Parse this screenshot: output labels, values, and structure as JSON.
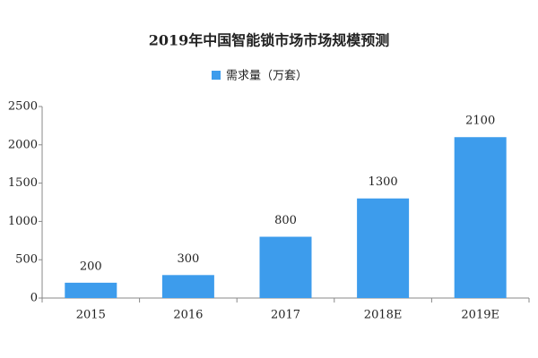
{
  "chart_data": {
    "type": "bar",
    "title": "2019年中国智能锁市场市场规模预测",
    "categories": [
      "2015",
      "2016",
      "2017",
      "2018E",
      "2019E"
    ],
    "series": [
      {
        "name": "需求量（万套）",
        "color": "#3d9cec",
        "values": [
          200,
          300,
          800,
          1300,
          2100
        ]
      }
    ],
    "ylim": [
      0,
      2500
    ],
    "yticks": [
      0,
      500,
      1000,
      1500,
      2000,
      2500
    ],
    "grid": false,
    "legend": "top"
  }
}
